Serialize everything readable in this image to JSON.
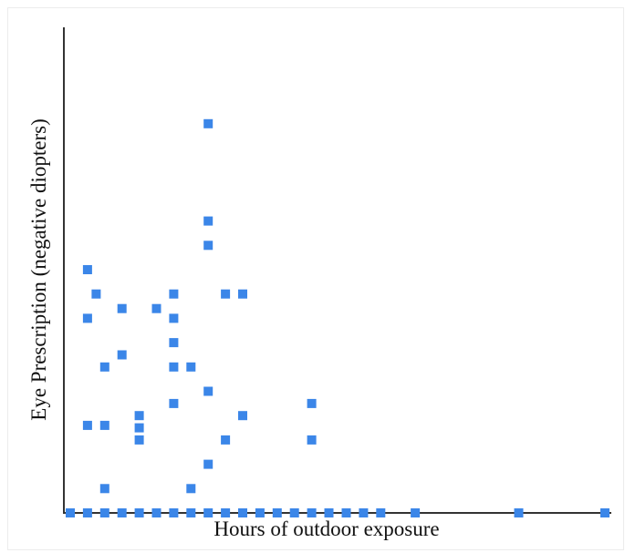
{
  "chart_data": {
    "type": "scatter",
    "title": "",
    "xlabel": "Hours of outdoor exposure",
    "ylabel": "Eye Prescription (negative diopters)",
    "xlim": [
      0,
      32
    ],
    "ylim": [
      0,
      10
    ],
    "grid": false,
    "legend": "none",
    "marker_color": "#3b86e8",
    "marker_shape": "square",
    "points": [
      {
        "x": 0.0,
        "y": 0.0
      },
      {
        "x": 1.0,
        "y": 0.0
      },
      {
        "x": 2.0,
        "y": 0.0
      },
      {
        "x": 3.0,
        "y": 0.0
      },
      {
        "x": 4.0,
        "y": 0.0
      },
      {
        "x": 5.0,
        "y": 0.0
      },
      {
        "x": 6.0,
        "y": 0.0
      },
      {
        "x": 7.0,
        "y": 0.0
      },
      {
        "x": 8.0,
        "y": 0.0
      },
      {
        "x": 9.0,
        "y": 0.0
      },
      {
        "x": 10.0,
        "y": 0.0
      },
      {
        "x": 11.0,
        "y": 0.0
      },
      {
        "x": 12.0,
        "y": 0.0
      },
      {
        "x": 13.0,
        "y": 0.0
      },
      {
        "x": 14.0,
        "y": 0.0
      },
      {
        "x": 15.0,
        "y": 0.0
      },
      {
        "x": 16.0,
        "y": 0.0
      },
      {
        "x": 17.0,
        "y": 0.0
      },
      {
        "x": 18.0,
        "y": 0.0
      },
      {
        "x": 20.0,
        "y": 0.0
      },
      {
        "x": 26.0,
        "y": 0.0
      },
      {
        "x": 31.0,
        "y": 0.0
      },
      {
        "x": 1.0,
        "y": 5.0
      },
      {
        "x": 1.5,
        "y": 4.5
      },
      {
        "x": 1.0,
        "y": 4.0
      },
      {
        "x": 1.0,
        "y": 1.8
      },
      {
        "x": 2.0,
        "y": 1.8
      },
      {
        "x": 2.0,
        "y": 3.0
      },
      {
        "x": 3.0,
        "y": 4.2
      },
      {
        "x": 3.0,
        "y": 3.25
      },
      {
        "x": 2.0,
        "y": 0.5
      },
      {
        "x": 4.0,
        "y": 2.0
      },
      {
        "x": 4.0,
        "y": 1.75
      },
      {
        "x": 4.0,
        "y": 1.5
      },
      {
        "x": 5.0,
        "y": 4.2
      },
      {
        "x": 6.0,
        "y": 4.5
      },
      {
        "x": 6.0,
        "y": 4.0
      },
      {
        "x": 6.0,
        "y": 3.5
      },
      {
        "x": 6.0,
        "y": 3.0
      },
      {
        "x": 6.0,
        "y": 2.25
      },
      {
        "x": 7.0,
        "y": 3.0
      },
      {
        "x": 7.0,
        "y": 0.5
      },
      {
        "x": 8.0,
        "y": 8.0
      },
      {
        "x": 8.0,
        "y": 6.0
      },
      {
        "x": 8.0,
        "y": 5.5
      },
      {
        "x": 8.0,
        "y": 2.5
      },
      {
        "x": 8.0,
        "y": 1.0
      },
      {
        "x": 9.0,
        "y": 4.5
      },
      {
        "x": 9.0,
        "y": 1.5
      },
      {
        "x": 10.0,
        "y": 4.5
      },
      {
        "x": 10.0,
        "y": 2.0
      },
      {
        "x": 14.0,
        "y": 2.25
      },
      {
        "x": 14.0,
        "y": 1.5
      }
    ]
  }
}
